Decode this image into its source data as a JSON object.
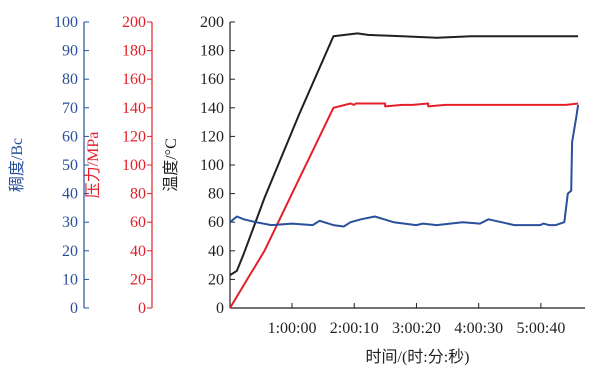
{
  "chart_data": {
    "type": "line",
    "title": "",
    "xlabel": "时间/(时:分:秒)",
    "x_ticks": [
      "1:00:00",
      "2:00:10",
      "3:00:20",
      "4:00:30",
      "5:00:40"
    ],
    "x_tick_seconds": [
      3600,
      7210,
      10820,
      14430,
      18040
    ],
    "xlim": [
      0,
      20600
    ],
    "grid": false,
    "axes": [
      {
        "id": "temp",
        "label": "温度/°C",
        "color": "#231f20",
        "ylim": [
          0,
          200
        ],
        "ticks": [
          0,
          20,
          40,
          60,
          80,
          100,
          120,
          140,
          160,
          180,
          200
        ]
      },
      {
        "id": "pressure",
        "label": "压力/MPa",
        "color": "#e3202a",
        "ylim": [
          0,
          200
        ],
        "ticks": [
          0,
          20,
          40,
          60,
          80,
          100,
          120,
          140,
          160,
          180,
          200
        ]
      },
      {
        "id": "consistency",
        "label": "稠度/Bc",
        "color": "#2a4f9b",
        "ylim": [
          0,
          100
        ],
        "ticks": [
          0,
          10,
          20,
          30,
          40,
          50,
          60,
          70,
          80,
          90,
          100
        ]
      }
    ],
    "series": [
      {
        "axis": "temp",
        "color": "#231f20",
        "x": [
          0,
          400,
          800,
          2000,
          4000,
          6000,
          7400,
          8000,
          10000,
          12000,
          14000,
          16000,
          18000,
          20200
        ],
        "y": [
          23,
          26,
          38,
          77,
          135,
          190,
          192,
          191,
          190,
          189,
          190,
          190,
          190,
          190
        ]
      },
      {
        "axis": "pressure",
        "color": "#e3202a",
        "x": [
          0,
          1000,
          2000,
          3000,
          4000,
          5000,
          6000,
          7000,
          7200,
          7300,
          8000,
          9000,
          9000,
          10000,
          10600,
          11500,
          11500,
          12500,
          14000,
          16000,
          18000,
          19500,
          20200
        ],
        "y": [
          0,
          20,
          40,
          65,
          90,
          115,
          140,
          143,
          142,
          143,
          143,
          143,
          141,
          142,
          142,
          143,
          141,
          142,
          142,
          142,
          142,
          142,
          143
        ]
      },
      {
        "axis": "consistency",
        "color": "#2a4f9b",
        "x": [
          0,
          400,
          800,
          1500,
          2400,
          3600,
          4800,
          5200,
          6000,
          6600,
          7000,
          7600,
          8400,
          9500,
          10800,
          11200,
          12000,
          13500,
          14500,
          15000,
          16500,
          18000,
          18200,
          18500,
          18900,
          19400,
          19600,
          19800,
          19850,
          20100,
          20200
        ],
        "y": [
          30,
          32,
          31,
          30,
          29,
          29.5,
          29,
          30.5,
          29,
          28.5,
          30,
          31,
          32,
          30,
          29,
          29.5,
          29,
          30,
          29.5,
          31,
          29,
          29,
          29.5,
          29,
          29,
          30,
          40,
          41,
          58,
          67,
          71
        ]
      }
    ]
  }
}
